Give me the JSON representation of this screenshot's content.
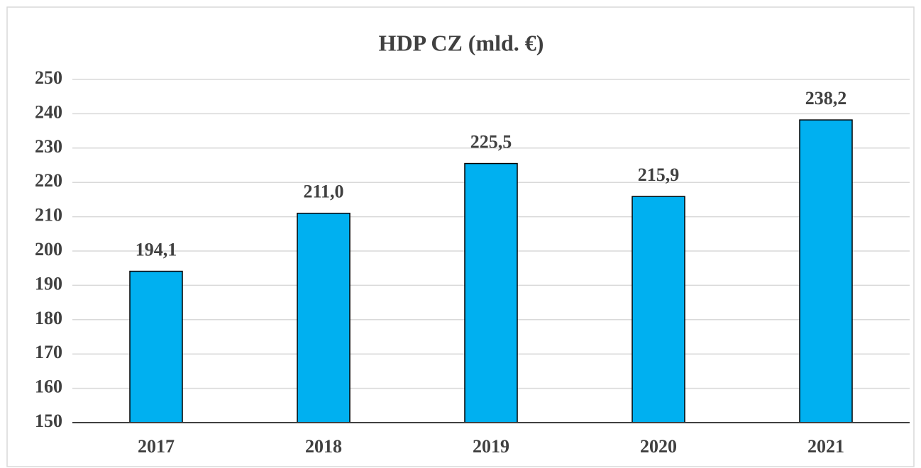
{
  "chart_data": {
    "type": "bar",
    "title": "HDP CZ (mld. €)",
    "categories": [
      "2017",
      "2018",
      "2019",
      "2020",
      "2021"
    ],
    "values": [
      194.1,
      211.0,
      225.5,
      215.9,
      238.2
    ],
    "value_labels": [
      "194,1",
      "211,0",
      "225,5",
      "215,9",
      "238,2"
    ],
    "color": "#00b0f0",
    "ylim": [
      150,
      250
    ],
    "yticks": [
      150,
      160,
      170,
      180,
      190,
      200,
      210,
      220,
      230,
      240,
      250
    ],
    "grid": true
  }
}
